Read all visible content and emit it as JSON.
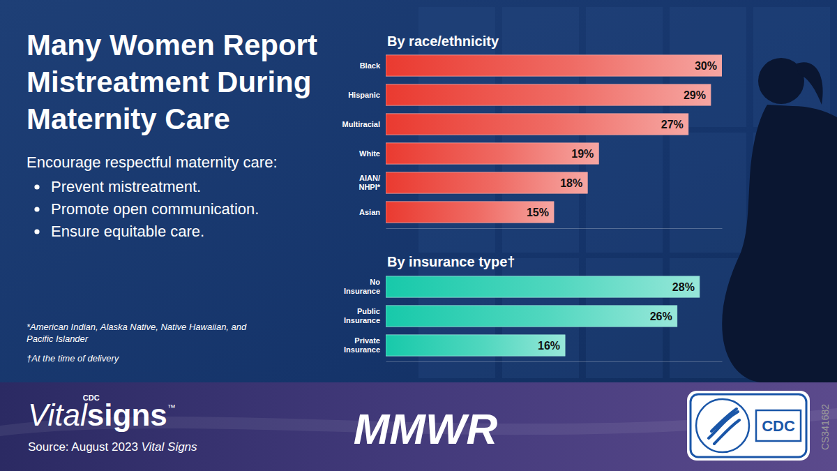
{
  "page": {
    "title": "Many Women Report Mistreatment During Maternity Care",
    "intro": "Encourage respectful maternity care:",
    "bullets": [
      "Prevent mistreatment.",
      "Promote open communication.",
      "Ensure equitable care."
    ],
    "footnotes": [
      "*American Indian, Alaska Native, Native Hawaiian, and Pacific Islander",
      "†At the time of delivery"
    ],
    "footer": {
      "brand_prefix": "CDC",
      "brand": [
        "Vital",
        "signs",
        "™"
      ],
      "source": [
        "Source: August 2023 ",
        "Vital Signs"
      ],
      "journal": "MMWR",
      "logo": "CDC",
      "code": "CS341682"
    }
  },
  "chart_data": [
    {
      "type": "bar",
      "title": "By race/ethnicity",
      "orientation": "horizontal",
      "categories": [
        "Black",
        "Hispanic",
        "Multiracial",
        "White",
        "AIAN/NHPI*",
        "Asian"
      ],
      "values": [
        30,
        29,
        27,
        19,
        18,
        15
      ],
      "value_labels": [
        "30%",
        "29%",
        "27%",
        "19%",
        "18%",
        "15%"
      ],
      "color": "#ea3a30",
      "xlim": [
        0,
        30
      ],
      "data_labels": true,
      "tick_labels": "y"
    },
    {
      "type": "bar",
      "title": "By insurance type†",
      "orientation": "horizontal",
      "categories": [
        "No Insurance",
        "Public Insurance",
        "Private Insurance"
      ],
      "values": [
        28,
        26,
        16
      ],
      "value_labels": [
        "28%",
        "26%",
        "16%"
      ],
      "color": "#17c9aa",
      "xlim": [
        0,
        30
      ],
      "data_labels": true,
      "tick_labels": "y"
    }
  ]
}
